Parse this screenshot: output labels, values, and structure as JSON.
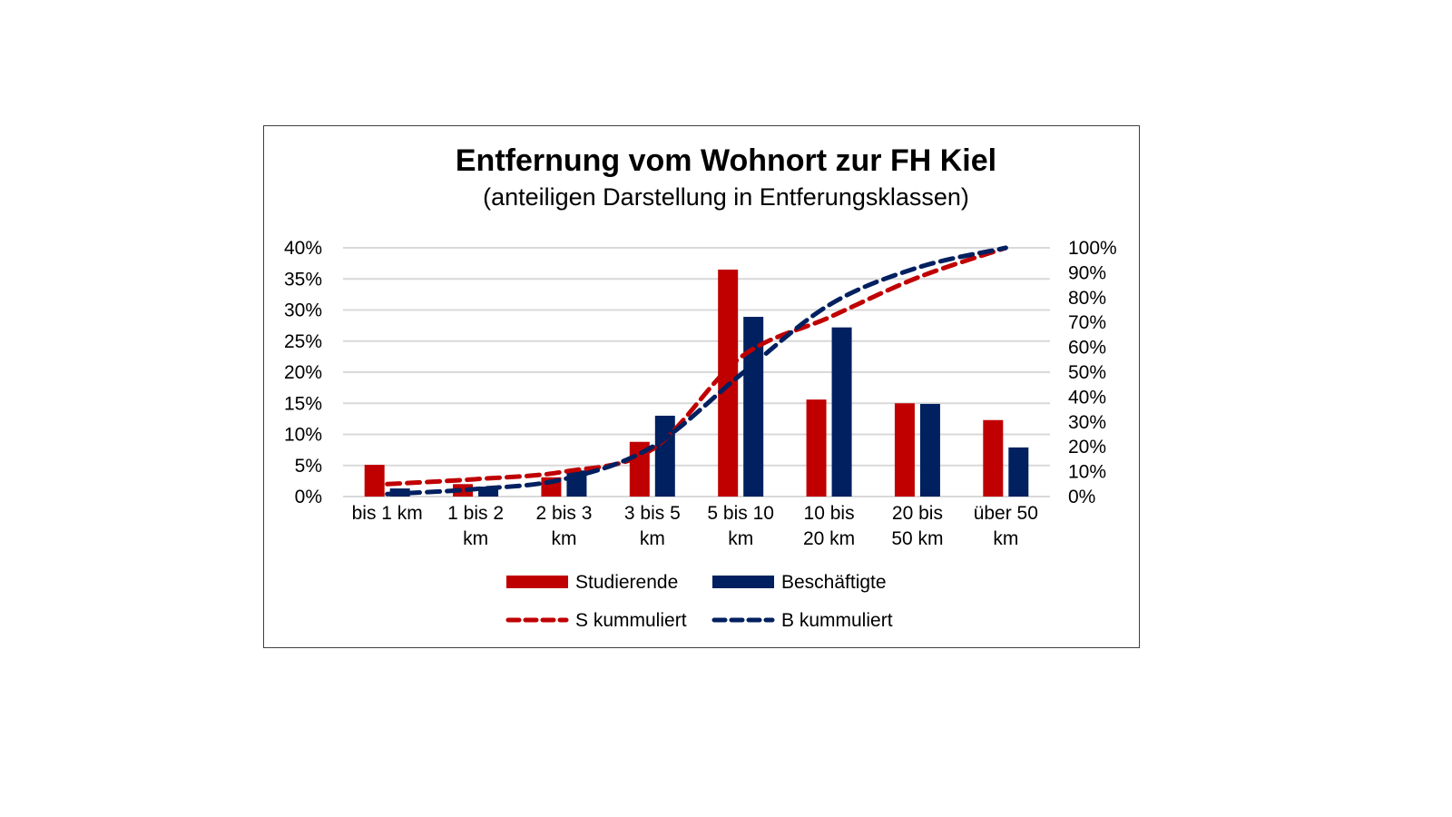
{
  "chart_data": {
    "type": "bar",
    "title": "Entfernung vom Wohnort zur FH Kiel",
    "subtitle": "(anteiligen Darstellung in Entferungsklassen)",
    "categories": [
      [
        "bis 1 km"
      ],
      [
        "1 bis 2",
        "km"
      ],
      [
        "2 bis 3",
        "km"
      ],
      [
        "3 bis 5",
        "km"
      ],
      [
        "5 bis 10",
        "km"
      ],
      [
        "10 bis",
        "20 km"
      ],
      [
        "20 bis",
        "50 km"
      ],
      [
        "über 50",
        "km"
      ]
    ],
    "y_left": {
      "ylim": [
        0,
        40
      ],
      "ticks": [
        0,
        5,
        10,
        15,
        20,
        25,
        30,
        35,
        40
      ],
      "tick_labels": [
        "0%",
        "5%",
        "10%",
        "15%",
        "20%",
        "25%",
        "30%",
        "35%",
        "40%"
      ]
    },
    "y_right": {
      "ylim": [
        0,
        100
      ],
      "ticks": [
        0,
        10,
        20,
        30,
        40,
        50,
        60,
        70,
        80,
        90,
        100
      ],
      "tick_labels": [
        "0%",
        "10%",
        "20%",
        "30%",
        "40%",
        "50%",
        "60%",
        "70%",
        "80%",
        "90%",
        "100%"
      ]
    },
    "grid": true,
    "legend_placement": "bottom",
    "series": [
      {
        "name": "Studierende",
        "kind": "bar",
        "axis": "left",
        "color": "#c00000",
        "values": [
          5.1,
          2.0,
          3.1,
          8.8,
          36.5,
          15.6,
          15.0,
          12.3
        ]
      },
      {
        "name": "Beschäftigte",
        "kind": "bar",
        "axis": "left",
        "color": "#002060",
        "values": [
          1.3,
          1.6,
          4.2,
          13.0,
          28.9,
          27.2,
          14.9,
          7.9
        ]
      },
      {
        "name": "S kummuliert",
        "kind": "line-dashed",
        "axis": "right",
        "color": "#c00000",
        "values": [
          5,
          7,
          10,
          19,
          56,
          72,
          88,
          100
        ]
      },
      {
        "name": "B kummuliert",
        "kind": "line-dashed",
        "axis": "right",
        "color": "#002060",
        "values": [
          1,
          3,
          7,
          20,
          49,
          77,
          92,
          100
        ]
      }
    ]
  }
}
